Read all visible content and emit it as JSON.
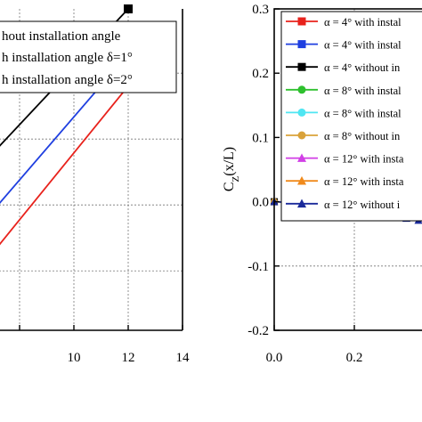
{
  "chart_data": [
    {
      "type": "line",
      "title": "",
      "xlabel": "",
      "ylabel": "",
      "xlim": [
        6,
        14
      ],
      "xticks": [
        "10",
        "12",
        "14"
      ],
      "grid": true,
      "legend": {
        "position": "top-left",
        "entries": [
          "hout installation angle",
          "h installation angle  δ=1°",
          "h installation angle  δ=2°"
        ]
      },
      "series": [
        {
          "color": "#000000",
          "marker": "square",
          "x": [
            7,
            12
          ],
          "y": [
            0.55,
            1.0
          ]
        },
        {
          "color": "#1f3fe0",
          "marker": "triangle",
          "x": [
            7,
            12
          ],
          "y": [
            0.37,
            0.86
          ]
        },
        {
          "color": "#e8221c",
          "marker": "circle",
          "x": [
            7,
            12
          ],
          "y": [
            0.24,
            0.76
          ]
        }
      ]
    },
    {
      "type": "line",
      "title": "",
      "xlabel": "",
      "ylabel": "C_Z(x/L)",
      "ylabel_main": "C",
      "ylabel_sub": "Z",
      "ylabel_rest": "(x/L)",
      "xlim": [
        0,
        0.6
      ],
      "ylim": [
        -0.2,
        0.3
      ],
      "xticks": [
        "0.0",
        "0.2"
      ],
      "yticks": [
        "0.3",
        "0.2",
        "0.1",
        "0.0",
        "-0.1",
        "-0.2"
      ],
      "grid": true,
      "legend": {
        "position": "top-right",
        "entries": [
          {
            "label": "α = 4° with instal",
            "color": "#e8221c",
            "marker": "square"
          },
          {
            "label": "α = 4° with instal",
            "color": "#1f3fe0",
            "marker": "square"
          },
          {
            "label": "α = 4° without in",
            "color": "#000000",
            "marker": "square"
          },
          {
            "label": "α = 8° with instal",
            "color": "#2ec02e",
            "marker": "circle"
          },
          {
            "label": "α = 8° with instal",
            "color": "#4fe6f2",
            "marker": "circle"
          },
          {
            "label": "α = 8° without in",
            "color": "#d9a23a",
            "marker": "circle"
          },
          {
            "label": "α = 12° with insta",
            "color": "#d13fe6",
            "marker": "triangle"
          },
          {
            "label": "α = 12° with insta",
            "color": "#f08a1c",
            "marker": "triangle"
          },
          {
            "label": "α = 12° without i",
            "color": "#1a2a9a",
            "marker": "triangle"
          }
        ]
      },
      "series": [
        {
          "name": "α = 4° without in",
          "color": "#000000",
          "marker": "square",
          "x": [
            0.0,
            0.06,
            0.12,
            0.18,
            0.24,
            0.3,
            0.36,
            0.42,
            0.48
          ],
          "y": [
            0.0,
            -0.001,
            -0.002,
            -0.003,
            -0.004,
            -0.005,
            -0.006,
            -0.006,
            -0.007
          ]
        },
        {
          "name": "α = 8° without in",
          "color": "#d9a23a",
          "marker": "circle",
          "x": [
            0.0,
            0.06,
            0.12,
            0.18,
            0.24,
            0.3,
            0.36,
            0.42
          ],
          "y": [
            0.0,
            -0.002,
            -0.004,
            -0.008,
            -0.013,
            -0.018,
            -0.022,
            -0.026
          ]
        },
        {
          "name": "α = 12° without i",
          "color": "#1a2a9a",
          "marker": "triangle",
          "x": [
            0.0,
            0.03,
            0.06,
            0.09,
            0.12,
            0.15,
            0.18,
            0.21,
            0.24,
            0.27,
            0.3,
            0.33,
            0.36,
            0.39,
            0.42,
            0.45
          ],
          "y": [
            0.0,
            -0.001,
            -0.002,
            -0.003,
            -0.004,
            -0.006,
            -0.009,
            -0.012,
            -0.016,
            -0.02,
            -0.024,
            -0.026,
            -0.029,
            -0.031,
            -0.033,
            -0.034
          ]
        }
      ]
    }
  ]
}
